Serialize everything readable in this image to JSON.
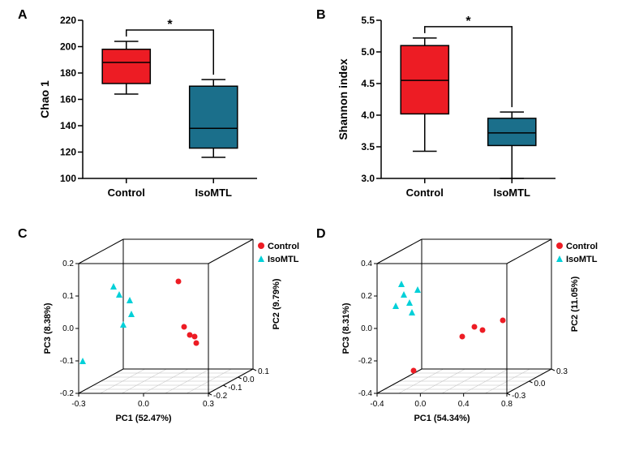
{
  "panel_labels": {
    "A": "A",
    "B": "B",
    "C": "C",
    "D": "D"
  },
  "panelA": {
    "type": "boxplot",
    "ylabel": "Chao 1",
    "categories": [
      "Control",
      "IsoMTL"
    ],
    "ylim": [
      100,
      220
    ],
    "ytick_step": 20,
    "yticks": [
      100,
      120,
      140,
      160,
      180,
      200,
      220
    ],
    "boxes": [
      {
        "min": 164,
        "q1": 172,
        "median": 188,
        "q3": 198,
        "max": 204,
        "fill": "#ed1c24"
      },
      {
        "min": 116,
        "q1": 123,
        "median": 138,
        "q3": 170,
        "max": 175,
        "fill": "#1b6f8b"
      }
    ],
    "significance": "*"
  },
  "panelB": {
    "type": "boxplot",
    "ylabel": "Shannon index",
    "categories": [
      "Control",
      "IsoMTL"
    ],
    "ylim": [
      3.0,
      5.5
    ],
    "ytick_step": 0.5,
    "yticks": [
      "3.0",
      "3.5",
      "4.0",
      "4.5",
      "5.0",
      "5.5"
    ],
    "boxes": [
      {
        "min": 3.43,
        "q1": 4.02,
        "median": 4.55,
        "q3": 5.1,
        "max": 5.22,
        "fill": "#ed1c24"
      },
      {
        "min": 3.0,
        "q1": 3.52,
        "median": 3.72,
        "q3": 3.95,
        "max": 4.05,
        "fill": "#1b6f8b"
      }
    ],
    "significance": "*"
  },
  "panelC": {
    "type": "3d-scatter",
    "x_label": "PC1 (52.47%)",
    "y_label": "PC2 (9.79%)",
    "z_label": "PC3 (8.38%)",
    "xticks": [
      "-0.3",
      "0.0",
      "0.3"
    ],
    "yticks": [
      "-0.2",
      "-0.1",
      "0.0",
      "0.1"
    ],
    "zticks": [
      "-0.2",
      "-0.1",
      "0.0",
      "0.1",
      "0.2"
    ],
    "legend": [
      {
        "label": "Control",
        "color": "#ed1c24",
        "marker": "circle"
      },
      {
        "label": "IsoMTL",
        "color": "#00d0d8",
        "marker": "triangle"
      }
    ],
    "points": {
      "control": [
        {
          "sx": 185,
          "sy": 118
        },
        {
          "sx": 192,
          "sy": 128
        },
        {
          "sx": 198,
          "sy": 130
        },
        {
          "sx": 200,
          "sy": 138
        },
        {
          "sx": 178,
          "sy": 62
        }
      ],
      "isomtl": [
        {
          "sx": 105,
          "sy": 78
        },
        {
          "sx": 118,
          "sy": 85
        },
        {
          "sx": 120,
          "sy": 102
        },
        {
          "sx": 110,
          "sy": 115
        },
        {
          "sx": 60,
          "sy": 160
        },
        {
          "sx": 98,
          "sy": 68
        }
      ]
    }
  },
  "panelD": {
    "type": "3d-scatter",
    "x_label": "PC1 (54.34%)",
    "y_label": "PC2 (11.05%)",
    "z_label": "PC3 (8.31%)",
    "xticks": [
      "-0.4",
      "0.0",
      "0.4",
      "0.8"
    ],
    "yticks": [
      "-0.3",
      "0.0",
      "0.3"
    ],
    "zticks": [
      "-0.4",
      "-0.2",
      "0.0",
      "0.2",
      "0.4"
    ],
    "legend": [
      {
        "label": "Control",
        "color": "#ed1c24",
        "marker": "circle"
      },
      {
        "label": "IsoMTL",
        "color": "#00d0d8",
        "marker": "triangle"
      }
    ],
    "points": {
      "control": [
        {
          "sx": 160,
          "sy": 130
        },
        {
          "sx": 175,
          "sy": 118
        },
        {
          "sx": 185,
          "sy": 122
        },
        {
          "sx": 210,
          "sy": 110
        },
        {
          "sx": 100,
          "sy": 172
        }
      ],
      "isomtl": [
        {
          "sx": 88,
          "sy": 78
        },
        {
          "sx": 95,
          "sy": 88
        },
        {
          "sx": 98,
          "sy": 100
        },
        {
          "sx": 85,
          "sy": 65
        },
        {
          "sx": 105,
          "sy": 72
        },
        {
          "sx": 78,
          "sy": 92
        }
      ]
    }
  }
}
